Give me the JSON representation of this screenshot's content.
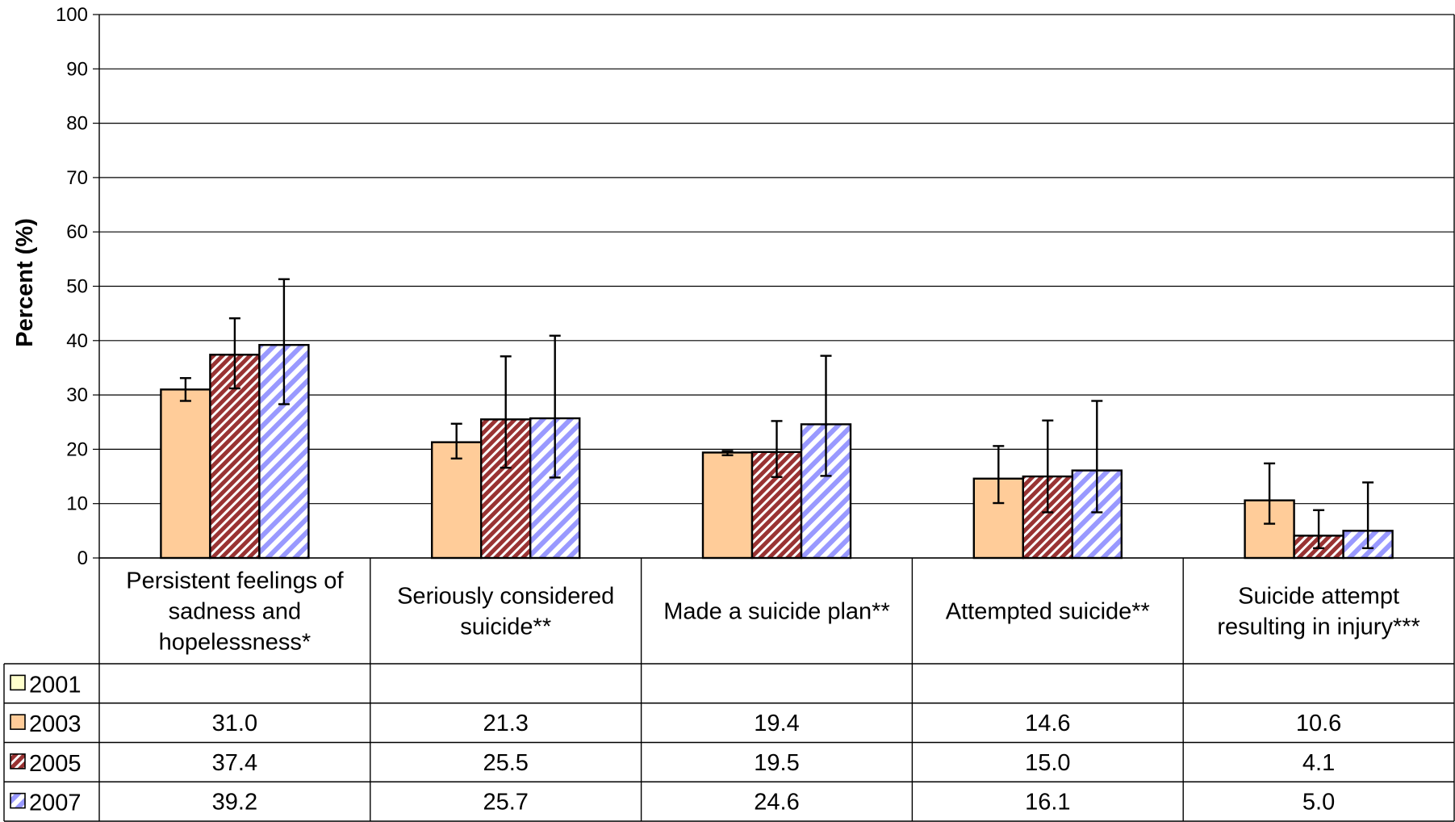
{
  "chart_data": {
    "type": "bar",
    "ylabel": "Percent (%)",
    "ylim": [
      0,
      100
    ],
    "yticks": [
      0,
      10,
      20,
      30,
      40,
      50,
      60,
      70,
      80,
      90,
      100
    ],
    "grid": true,
    "categories": [
      [
        "Persistent feelings of",
        "sadness and",
        "hopelessness*"
      ],
      [
        "Seriously considered",
        "suicide**"
      ],
      [
        "Made a suicide plan**"
      ],
      [
        "Attempted suicide**"
      ],
      [
        "Suicide attempt",
        "resulting in injury***"
      ]
    ],
    "series": [
      {
        "name": "2001",
        "pattern": "solid",
        "color": "#ffffcc",
        "values": [
          null,
          null,
          null,
          null,
          null
        ],
        "labels": [
          "",
          "",
          "",
          "",
          ""
        ],
        "err_low": [
          null,
          null,
          null,
          null,
          null
        ],
        "err_high": [
          null,
          null,
          null,
          null,
          null
        ]
      },
      {
        "name": "2003",
        "pattern": "solid",
        "color": "#ffcc99",
        "values": [
          31.0,
          21.3,
          19.4,
          14.6,
          10.6
        ],
        "labels": [
          "31.0",
          "21.3",
          "19.4",
          "14.6",
          "10.6"
        ],
        "err_low": [
          28.9,
          18.3,
          18.9,
          10.1,
          6.3
        ],
        "err_high": [
          33.1,
          24.7,
          19.7,
          20.6,
          17.4
        ]
      },
      {
        "name": "2005",
        "pattern": "diag-dense",
        "color": "#993333",
        "values": [
          37.4,
          25.5,
          19.5,
          15.0,
          4.1
        ],
        "labels": [
          "37.4",
          "25.5",
          "19.5",
          "15.0",
          "4.1"
        ],
        "err_low": [
          31.2,
          16.6,
          14.9,
          8.4,
          1.8
        ],
        "err_high": [
          44.1,
          37.1,
          25.2,
          25.3,
          8.8
        ]
      },
      {
        "name": "2007",
        "pattern": "diag-wide",
        "color": "#9999ff",
        "values": [
          39.2,
          25.7,
          24.6,
          16.1,
          5.0
        ],
        "labels": [
          "39.2",
          "25.7",
          "24.6",
          "16.1",
          "5.0"
        ],
        "err_low": [
          28.3,
          14.8,
          15.1,
          8.4,
          1.8
        ],
        "err_high": [
          51.3,
          40.9,
          37.2,
          28.9,
          13.9
        ]
      }
    ]
  }
}
